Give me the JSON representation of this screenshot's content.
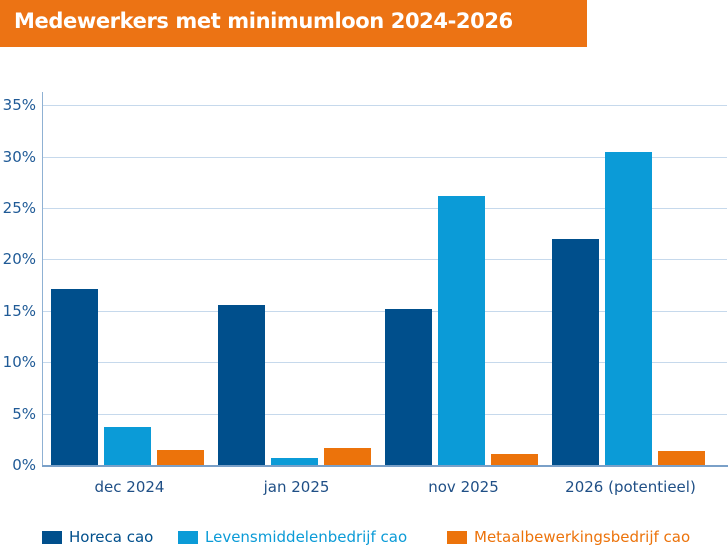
{
  "title": "Medewerkers met minimumloon 2024-2026",
  "colors": {
    "title_bar": "#ec7314",
    "horeca": "#004f8c",
    "levensmiddelen": "#0b9bd7",
    "metaal": "#ec730b",
    "gridline": "#c6d9ec",
    "axis_text": "#1f5a96"
  },
  "y_axis": {
    "ticks": [
      "0%",
      "5%",
      "10%",
      "15%",
      "20%",
      "25%",
      "30%",
      "35%"
    ]
  },
  "x_axis": {
    "categories": [
      "dec 2024",
      "jan 2025",
      "nov 2025",
      "2026 (potentieel)"
    ]
  },
  "legend": {
    "items": [
      {
        "label": "Horeca cao",
        "color": "#004f8c"
      },
      {
        "label": "Levensmiddelenbedrijf cao",
        "color": "#0b9bd7"
      },
      {
        "label": "Metaalbewerkingsbedrijf cao",
        "color": "#ec730b"
      }
    ]
  },
  "chart_data": {
    "type": "bar",
    "title": "Medewerkers met minimumloon 2024-2026",
    "xlabel": "",
    "ylabel": "",
    "categories": [
      "dec 2024",
      "jan 2025",
      "nov 2025",
      "2026 (potentieel)"
    ],
    "series": [
      {
        "name": "Horeca cao",
        "color": "#004f8c",
        "values": [
          17.1,
          15.6,
          15.2,
          22.0
        ]
      },
      {
        "name": "Levensmiddelenbedrijf cao",
        "color": "#0b9bd7",
        "values": [
          3.7,
          0.7,
          26.2,
          30.4
        ]
      },
      {
        "name": "Metaalbewerkingsbedrijf cao",
        "color": "#ec730b",
        "values": [
          1.5,
          1.7,
          1.1,
          1.4
        ]
      }
    ],
    "ylim": [
      0,
      35
    ],
    "yticks": [
      0,
      5,
      10,
      15,
      20,
      25,
      30,
      35
    ],
    "ytick_format": "percent",
    "grid": true,
    "legend_position": "bottom"
  }
}
